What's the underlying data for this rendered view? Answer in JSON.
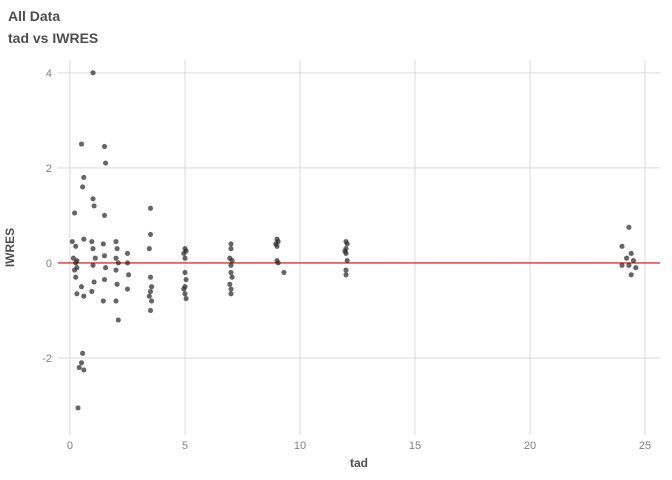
{
  "header": {
    "title": "All Data",
    "subtitle": "tad vs IWRES"
  },
  "chart_data": {
    "type": "scatter",
    "title": "All Data",
    "subtitle": "tad vs IWRES",
    "xlabel": "tad",
    "ylabel": "IWRES",
    "xlim": [
      -0.52,
      25.65
    ],
    "ylim": [
      -3.62,
      4.27
    ],
    "x_ticks": [
      0,
      5,
      10,
      15,
      20,
      25
    ],
    "y_ticks": [
      -2,
      0,
      2,
      4
    ],
    "grid": true,
    "legend": "none",
    "reference_line": {
      "y": 0,
      "color": "#dd3333"
    },
    "point_color": "#2b2b2b",
    "point_opacity": 0.72,
    "point_radius": 2.4,
    "grid_color": "#d9d9d9",
    "points": [
      [
        0.2,
        1.05
      ],
      [
        0.1,
        0.45
      ],
      [
        0.25,
        0.35
      ],
      [
        0.15,
        0.1
      ],
      [
        0.3,
        0.05
      ],
      [
        0.25,
        0.0
      ],
      [
        0.3,
        -0.1
      ],
      [
        0.2,
        -0.15
      ],
      [
        0.25,
        -0.3
      ],
      [
        0.3,
        -0.65
      ],
      [
        0.4,
        -2.2
      ],
      [
        0.35,
        -3.05
      ],
      [
        0.5,
        2.5
      ],
      [
        0.6,
        1.8
      ],
      [
        0.55,
        1.6
      ],
      [
        0.6,
        0.5
      ],
      [
        0.5,
        -0.5
      ],
      [
        0.6,
        -0.7
      ],
      [
        0.55,
        -1.9
      ],
      [
        0.5,
        -2.1
      ],
      [
        0.6,
        -2.25
      ],
      [
        1.0,
        4.0
      ],
      [
        1.0,
        1.35
      ],
      [
        1.05,
        1.2
      ],
      [
        0.95,
        0.45
      ],
      [
        1.0,
        0.3
      ],
      [
        1.1,
        0.1
      ],
      [
        1.0,
        -0.05
      ],
      [
        1.05,
        -0.4
      ],
      [
        0.95,
        -0.6
      ],
      [
        1.5,
        2.45
      ],
      [
        1.55,
        2.1
      ],
      [
        1.5,
        1.0
      ],
      [
        1.45,
        0.4
      ],
      [
        1.5,
        0.15
      ],
      [
        1.55,
        -0.1
      ],
      [
        1.5,
        -0.35
      ],
      [
        1.45,
        -0.8
      ],
      [
        2.0,
        0.45
      ],
      [
        2.05,
        0.3
      ],
      [
        2.0,
        0.1
      ],
      [
        2.1,
        0.0
      ],
      [
        2.0,
        -0.15
      ],
      [
        2.05,
        -0.45
      ],
      [
        2.0,
        -0.8
      ],
      [
        2.1,
        -1.2
      ],
      [
        2.5,
        0.2
      ],
      [
        2.5,
        0.0
      ],
      [
        2.55,
        -0.25
      ],
      [
        2.5,
        -0.55
      ],
      [
        3.5,
        1.15
      ],
      [
        3.5,
        0.6
      ],
      [
        3.45,
        0.3
      ],
      [
        3.5,
        -0.3
      ],
      [
        3.55,
        -0.5
      ],
      [
        3.5,
        -0.6
      ],
      [
        3.45,
        -0.7
      ],
      [
        3.55,
        -0.8
      ],
      [
        3.5,
        -1.0
      ],
      [
        5.0,
        0.3
      ],
      [
        5.05,
        0.25
      ],
      [
        4.95,
        0.2
      ],
      [
        5.0,
        0.1
      ],
      [
        5.0,
        -0.2
      ],
      [
        5.05,
        -0.35
      ],
      [
        5.0,
        -0.5
      ],
      [
        4.95,
        -0.55
      ],
      [
        5.0,
        -0.65
      ],
      [
        5.05,
        -0.75
      ],
      [
        7.0,
        0.4
      ],
      [
        7.0,
        0.3
      ],
      [
        6.95,
        0.1
      ],
      [
        7.05,
        0.05
      ],
      [
        7.0,
        -0.05
      ],
      [
        7.0,
        -0.2
      ],
      [
        7.05,
        -0.3
      ],
      [
        6.95,
        -0.45
      ],
      [
        7.0,
        -0.55
      ],
      [
        7.0,
        -0.65
      ],
      [
        9.0,
        0.5
      ],
      [
        9.05,
        0.45
      ],
      [
        8.95,
        0.4
      ],
      [
        9.0,
        0.35
      ],
      [
        9.0,
        0.05
      ],
      [
        9.05,
        0.0
      ],
      [
        9.3,
        -0.2
      ],
      [
        12.0,
        0.45
      ],
      [
        12.05,
        0.4
      ],
      [
        12.0,
        0.3
      ],
      [
        11.95,
        0.25
      ],
      [
        12.0,
        0.2
      ],
      [
        12.05,
        0.05
      ],
      [
        12.0,
        -0.15
      ],
      [
        12.0,
        -0.25
      ],
      [
        24.0,
        0.35
      ],
      [
        24.3,
        0.75
      ],
      [
        24.4,
        0.2
      ],
      [
        24.2,
        0.1
      ],
      [
        24.5,
        0.05
      ],
      [
        24.3,
        -0.05
      ],
      [
        24.6,
        -0.1
      ],
      [
        24.4,
        -0.25
      ],
      [
        24.0,
        -0.05
      ]
    ]
  }
}
